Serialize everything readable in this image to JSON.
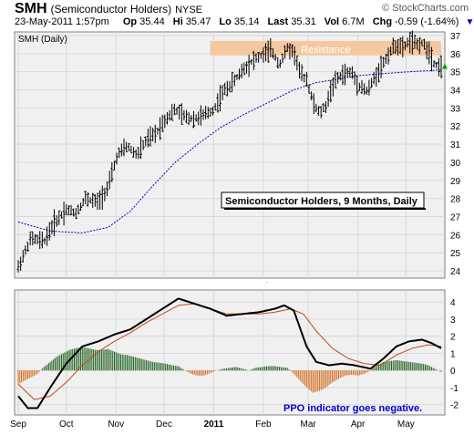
{
  "header": {
    "symbol": "SMH",
    "company": "(Semiconductor Holders)",
    "exchange": "NYSE",
    "watermark": "© StockCharts.com",
    "datetime": "23-May-2011 1:57pm",
    "quote": [
      {
        "label": "Op",
        "value": "35.44"
      },
      {
        "label": "Hi",
        "value": "35.47"
      },
      {
        "label": "Lo",
        "value": "35.14"
      },
      {
        "label": "Last",
        "value": "35.31"
      },
      {
        "label": "Vol",
        "value": "6.7M"
      },
      {
        "label": "Chg",
        "value": "-0.59 (-1.64%)"
      }
    ],
    "chg_arrow": "down-triangle-icon"
  },
  "colors": {
    "price_bar": "#000000",
    "ma_line": "#0000cc",
    "resistance_band": "#f5c8a0",
    "resistance_text": "#ffffff",
    "ppo_line": "#000000",
    "signal_line": "#c04a10",
    "hist_positive": "#1f5f1f",
    "hist_negative": "#d2691e",
    "note_text": "#0000cc",
    "up_arrow": "#00a000"
  },
  "chart_data": [
    {
      "type": "ohlc",
      "panel_label": "SMH (Daily)",
      "annotation": "Semiconductor Holders, 9 Months, Daily",
      "band_label": "Resistance",
      "band_range": [
        35.9,
        36.7
      ],
      "ylim": [
        23.6,
        37.2
      ],
      "y_ticks": [
        24,
        25,
        26,
        27,
        28,
        29,
        30,
        31,
        32,
        33,
        34,
        35,
        36,
        37
      ],
      "last_value": 35.31,
      "x_labels": [
        {
          "label": "Sep",
          "day": 0
        },
        {
          "label": "Oct",
          "day": 30
        },
        {
          "label": "Nov",
          "day": 61
        },
        {
          "label": "Dec",
          "day": 91
        },
        {
          "label": "2011",
          "day": 122
        },
        {
          "label": "Feb",
          "day": 153
        },
        {
          "label": "Mar",
          "day": 181
        },
        {
          "label": "Apr",
          "day": 212
        },
        {
          "label": "May",
          "day": 242
        }
      ],
      "x_range": [
        0,
        264
      ],
      "price_path": [
        [
          0,
          24.2
        ],
        [
          8,
          25.8
        ],
        [
          16,
          25.6
        ],
        [
          22,
          26.6
        ],
        [
          30,
          27.4
        ],
        [
          36,
          27.2
        ],
        [
          42,
          28.0
        ],
        [
          50,
          27.8
        ],
        [
          56,
          28.6
        ],
        [
          62,
          30.4
        ],
        [
          68,
          30.9
        ],
        [
          74,
          30.4
        ],
        [
          80,
          31.2
        ],
        [
          86,
          31.6
        ],
        [
          92,
          32.4
        ],
        [
          98,
          32.9
        ],
        [
          104,
          32.5
        ],
        [
          110,
          32.4
        ],
        [
          116,
          32.6
        ],
        [
          122,
          32.9
        ],
        [
          128,
          33.9
        ],
        [
          134,
          34.4
        ],
        [
          140,
          35.1
        ],
        [
          146,
          35.6
        ],
        [
          152,
          35.9
        ],
        [
          158,
          36.2
        ],
        [
          163,
          35.4
        ],
        [
          168,
          36.3
        ],
        [
          172,
          36.1
        ],
        [
          176,
          34.9
        ],
        [
          180,
          34.6
        ],
        [
          184,
          33.3
        ],
        [
          188,
          32.7
        ],
        [
          192,
          33.1
        ],
        [
          196,
          34.2
        ],
        [
          200,
          34.7
        ],
        [
          204,
          34.9
        ],
        [
          208,
          35.0
        ],
        [
          212,
          34.3
        ],
        [
          218,
          33.9
        ],
        [
          222,
          34.6
        ],
        [
          226,
          35.2
        ],
        [
          232,
          36.1
        ],
        [
          236,
          36.5
        ],
        [
          240,
          36.3
        ],
        [
          244,
          36.7
        ],
        [
          248,
          36.5
        ],
        [
          252,
          36.6
        ],
        [
          256,
          36.2
        ],
        [
          260,
          35.4
        ],
        [
          264,
          35.3
        ]
      ],
      "ma_path": [
        [
          0,
          26.7
        ],
        [
          20,
          26.2
        ],
        [
          40,
          26.1
        ],
        [
          56,
          26.4
        ],
        [
          70,
          27.3
        ],
        [
          84,
          28.7
        ],
        [
          98,
          30.0
        ],
        [
          112,
          31.0
        ],
        [
          126,
          31.9
        ],
        [
          140,
          32.6
        ],
        [
          156,
          33.3
        ],
        [
          172,
          34.0
        ],
        [
          186,
          34.4
        ],
        [
          200,
          34.6
        ],
        [
          214,
          34.8
        ],
        [
          228,
          34.9
        ],
        [
          244,
          35.0
        ],
        [
          264,
          35.1
        ]
      ]
    },
    {
      "type": "line+histogram",
      "ylim": [
        -2.6,
        4.7
      ],
      "y_ticks": [
        -2,
        -1,
        0,
        1,
        2,
        3,
        4
      ],
      "note": "PPO indicator goes negative.",
      "ppo_path": [
        [
          0,
          -1.5
        ],
        [
          6,
          -2.2
        ],
        [
          12,
          -2.2
        ],
        [
          20,
          -1.0
        ],
        [
          30,
          0.4
        ],
        [
          40,
          1.4
        ],
        [
          50,
          1.7
        ],
        [
          60,
          2.1
        ],
        [
          70,
          2.4
        ],
        [
          80,
          3.0
        ],
        [
          90,
          3.6
        ],
        [
          100,
          4.2
        ],
        [
          110,
          3.9
        ],
        [
          120,
          3.6
        ],
        [
          130,
          3.2
        ],
        [
          140,
          3.3
        ],
        [
          150,
          3.4
        ],
        [
          160,
          3.6
        ],
        [
          166,
          3.8
        ],
        [
          172,
          3.5
        ],
        [
          180,
          1.4
        ],
        [
          186,
          0.5
        ],
        [
          194,
          0.3
        ],
        [
          202,
          0.4
        ],
        [
          210,
          0.3
        ],
        [
          220,
          0.1
        ],
        [
          228,
          0.7
        ],
        [
          236,
          1.4
        ],
        [
          244,
          1.7
        ],
        [
          252,
          1.8
        ],
        [
          258,
          1.6
        ],
        [
          264,
          1.3
        ]
      ],
      "signal_path": [
        [
          0,
          -0.8
        ],
        [
          10,
          -1.7
        ],
        [
          20,
          -1.5
        ],
        [
          30,
          -0.7
        ],
        [
          40,
          0.3
        ],
        [
          50,
          1.1
        ],
        [
          60,
          1.7
        ],
        [
          70,
          2.2
        ],
        [
          80,
          2.8
        ],
        [
          90,
          3.3
        ],
        [
          100,
          3.8
        ],
        [
          110,
          3.9
        ],
        [
          120,
          3.6
        ],
        [
          130,
          3.3
        ],
        [
          140,
          3.3
        ],
        [
          150,
          3.3
        ],
        [
          160,
          3.4
        ],
        [
          170,
          3.6
        ],
        [
          178,
          3.3
        ],
        [
          186,
          2.3
        ],
        [
          196,
          1.3
        ],
        [
          206,
          0.7
        ],
        [
          216,
          0.4
        ],
        [
          226,
          0.3
        ],
        [
          236,
          0.9
        ],
        [
          246,
          1.3
        ],
        [
          256,
          1.5
        ],
        [
          264,
          1.4
        ]
      ],
      "hist_points": [
        [
          0,
          -0.8
        ],
        [
          4,
          -0.6
        ],
        [
          8,
          -0.4
        ],
        [
          12,
          -0.2
        ],
        [
          16,
          0.2
        ],
        [
          20,
          0.5
        ],
        [
          24,
          0.8
        ],
        [
          28,
          1.0
        ],
        [
          32,
          1.2
        ],
        [
          36,
          1.3
        ],
        [
          40,
          1.35
        ],
        [
          44,
          1.3
        ],
        [
          48,
          1.2
        ],
        [
          52,
          1.2
        ],
        [
          56,
          1.25
        ],
        [
          60,
          1.1
        ],
        [
          64,
          0.95
        ],
        [
          68,
          0.9
        ],
        [
          72,
          0.8
        ],
        [
          76,
          0.7
        ],
        [
          80,
          0.6
        ],
        [
          84,
          0.5
        ],
        [
          88,
          0.45
        ],
        [
          92,
          0.4
        ],
        [
          96,
          0.3
        ],
        [
          100,
          0.25
        ],
        [
          104,
          0.0
        ],
        [
          108,
          -0.2
        ],
        [
          112,
          -0.3
        ],
        [
          116,
          -0.3
        ],
        [
          120,
          -0.15
        ],
        [
          124,
          0.0
        ],
        [
          128,
          0.1
        ],
        [
          132,
          0.15
        ],
        [
          136,
          0.2
        ],
        [
          140,
          0.1
        ],
        [
          144,
          0.0
        ],
        [
          148,
          0.15
        ],
        [
          152,
          0.2
        ],
        [
          156,
          0.25
        ],
        [
          160,
          0.25
        ],
        [
          164,
          0.2
        ],
        [
          168,
          0.15
        ],
        [
          172,
          -0.2
        ],
        [
          176,
          -0.6
        ],
        [
          180,
          -1.0
        ],
        [
          184,
          -1.3
        ],
        [
          188,
          -1.2
        ],
        [
          192,
          -1.0
        ],
        [
          196,
          -0.7
        ],
        [
          200,
          -0.5
        ],
        [
          204,
          -0.3
        ],
        [
          208,
          -0.25
        ],
        [
          212,
          -0.3
        ],
        [
          216,
          -0.2
        ],
        [
          220,
          0.0
        ],
        [
          224,
          0.3
        ],
        [
          228,
          0.5
        ],
        [
          232,
          0.55
        ],
        [
          236,
          0.6
        ],
        [
          240,
          0.55
        ],
        [
          244,
          0.5
        ],
        [
          248,
          0.45
        ],
        [
          252,
          0.4
        ],
        [
          256,
          0.3
        ],
        [
          260,
          0.1
        ],
        [
          264,
          -0.1
        ]
      ]
    }
  ]
}
